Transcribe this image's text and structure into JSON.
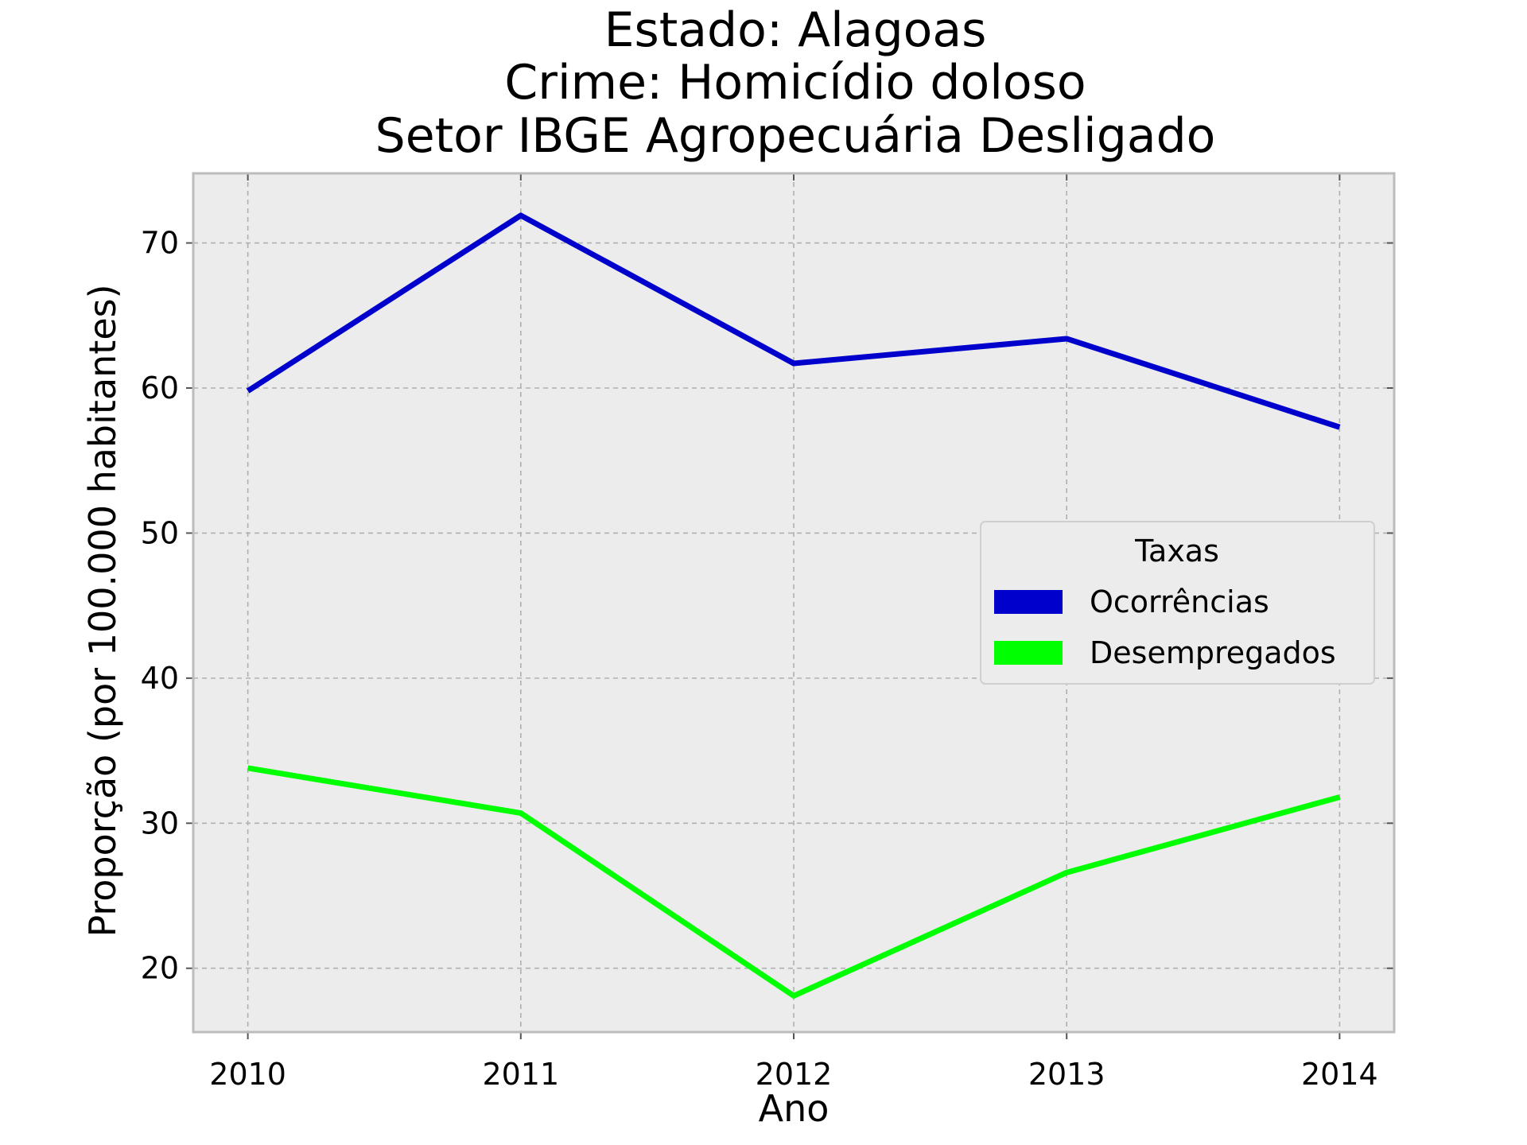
{
  "chart_data": {
    "type": "line",
    "title": [
      "Estado: Alagoas",
      "Crime: Homicídio doloso",
      "Setor IBGE  Agropecuária   Desligado"
    ],
    "xlabel": "Ano",
    "ylabel": "Proporção (por 100.000 habitantes)",
    "x": [
      2010,
      2011,
      2012,
      2013,
      2014
    ],
    "x_tick_labels": [
      "2010",
      "2011",
      "2012",
      "2013",
      "2014"
    ],
    "y_ticks": [
      20,
      30,
      40,
      50,
      60,
      70
    ],
    "y_tick_labels": [
      "20",
      "30",
      "40",
      "50",
      "60",
      "70"
    ],
    "xlim": [
      2009.8,
      2014.2
    ],
    "ylim": [
      15.6,
      74.8
    ],
    "grid": true,
    "legend": {
      "title": "Taxas",
      "placement": "center-right"
    },
    "series": [
      {
        "name": "Ocorrências",
        "color": "#0000cc",
        "values": [
          59.8,
          71.9,
          61.7,
          63.4,
          57.3
        ]
      },
      {
        "name": "Desempregados",
        "color": "#00ff00",
        "values": [
          33.8,
          30.7,
          18.1,
          26.6,
          31.8
        ]
      }
    ],
    "plot_background": "#ececec"
  }
}
